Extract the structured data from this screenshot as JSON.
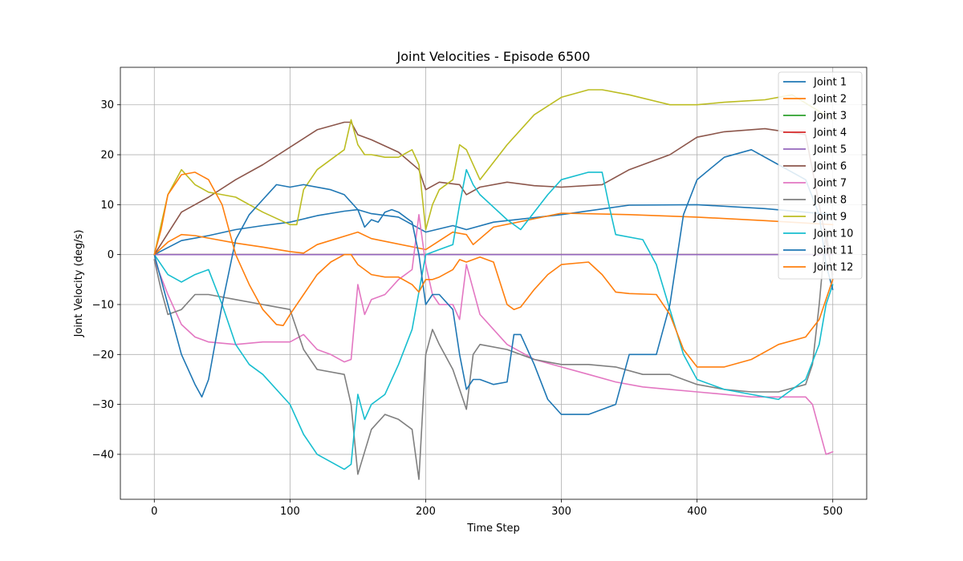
{
  "chart_data": {
    "type": "line",
    "title": "Joint Velocities - Episode 6500",
    "xlabel": "Time Step",
    "ylabel": "Joint Velocity (deg/s)",
    "xlim": [
      -25,
      525
    ],
    "ylim": [
      -49,
      37.5
    ],
    "xticks": [
      0,
      100,
      200,
      300,
      400,
      500
    ],
    "yticks": [
      -40,
      -30,
      -20,
      -10,
      0,
      10,
      20,
      30
    ],
    "grid": true,
    "legend_position": "top-right",
    "series": [
      {
        "name": "Joint 1",
        "color": "#1f77b4",
        "x": [
          0,
          20,
          40,
          60,
          80,
          100,
          120,
          140,
          150,
          160,
          180,
          200,
          220,
          230,
          250,
          300,
          350,
          400,
          450,
          500
        ],
        "y": [
          0,
          2.8,
          3.8,
          5,
          5.8,
          6.5,
          7.8,
          8.7,
          9,
          8.2,
          7.5,
          4.5,
          5.8,
          5,
          6.5,
          8,
          9.9,
          10,
          9.2,
          8
        ]
      },
      {
        "name": "Joint 2",
        "color": "#ff7f0e",
        "x": [
          0,
          10,
          20,
          30,
          40,
          60,
          80,
          100,
          110,
          120,
          150,
          160,
          200,
          220,
          230,
          235,
          250,
          300,
          350,
          400,
          450,
          500
        ],
        "y": [
          0,
          2.5,
          4,
          3.8,
          3.3,
          2.3,
          1.5,
          0.6,
          0.3,
          2,
          4.5,
          3.2,
          1,
          4.5,
          4,
          2,
          5.5,
          8.3,
          8,
          7.5,
          6.8,
          6
        ]
      },
      {
        "name": "Joint 3",
        "color": "#2ca02c",
        "x": [
          0,
          500
        ],
        "y": [
          0,
          0
        ]
      },
      {
        "name": "Joint 4",
        "color": "#d62728",
        "x": [
          0,
          500
        ],
        "y": [
          0,
          0
        ]
      },
      {
        "name": "Joint 5",
        "color": "#9467bd",
        "x": [
          0,
          500
        ],
        "y": [
          0,
          0
        ]
      },
      {
        "name": "Joint 6",
        "color": "#8c564b",
        "x": [
          0,
          20,
          40,
          60,
          80,
          100,
          120,
          140,
          145,
          150,
          160,
          180,
          195,
          200,
          210,
          225,
          230,
          240,
          260,
          280,
          300,
          330,
          350,
          380,
          400,
          420,
          450,
          480,
          500
        ],
        "y": [
          0,
          8.5,
          11.5,
          15,
          18,
          21.5,
          25,
          26.5,
          26.5,
          24,
          23,
          20.5,
          17,
          13,
          14.5,
          14,
          12,
          13.5,
          14.5,
          13.8,
          13.5,
          14,
          17,
          20,
          23.5,
          24.6,
          25.2,
          24,
          -4
        ]
      },
      {
        "name": "Joint 7",
        "color": "#e377c2",
        "x": [
          0,
          10,
          20,
          30,
          40,
          60,
          80,
          100,
          110,
          120,
          130,
          140,
          145,
          150,
          155,
          160,
          170,
          180,
          190,
          195,
          200,
          205,
          210,
          220,
          225,
          230,
          240,
          260,
          280,
          300,
          320,
          340,
          360,
          380,
          400,
          420,
          440,
          460,
          480,
          485,
          490,
          495,
          500
        ],
        "y": [
          -1,
          -8,
          -14,
          -16.5,
          -17.5,
          -18,
          -17.5,
          -17.5,
          -16,
          -19,
          -20,
          -21.5,
          -21,
          -6,
          -12,
          -9,
          -8,
          -5,
          -3,
          8,
          -2,
          -8,
          -10,
          -10,
          -13,
          -2,
          -12,
          -18,
          -21,
          -22.5,
          -24,
          -25.5,
          -26.5,
          -27,
          -27.5,
          -28,
          -28.5,
          -28.5,
          -28.5,
          -30,
          -35,
          -40,
          -39.5
        ]
      },
      {
        "name": "Joint 8",
        "color": "#7f7f7f",
        "x": [
          0,
          5,
          10,
          20,
          30,
          40,
          50,
          60,
          80,
          100,
          110,
          120,
          140,
          145,
          150,
          160,
          170,
          180,
          190,
          195,
          200,
          205,
          210,
          220,
          230,
          235,
          240,
          260,
          280,
          300,
          320,
          340,
          360,
          380,
          400,
          420,
          440,
          460,
          480,
          485,
          490,
          495,
          500
        ],
        "y": [
          -1,
          -7,
          -12,
          -11,
          -8,
          -8,
          -8.5,
          -9,
          -10,
          -11,
          -19,
          -23,
          -24,
          -30,
          -44,
          -35,
          -32,
          -33,
          -35,
          -45,
          -20,
          -15,
          -18,
          -23,
          -31,
          -20,
          -18,
          -19,
          -21,
          -22,
          -22,
          -22.5,
          -24,
          -24,
          -26,
          -27,
          -27.5,
          -27.5,
          -26,
          -22,
          -10,
          5,
          -5
        ]
      },
      {
        "name": "Joint 9",
        "color": "#bcbd22",
        "x": [
          0,
          10,
          20,
          30,
          40,
          50,
          60,
          80,
          100,
          105,
          110,
          120,
          140,
          145,
          150,
          155,
          160,
          170,
          180,
          190,
          195,
          200,
          205,
          210,
          220,
          225,
          230,
          240,
          260,
          280,
          300,
          320,
          330,
          350,
          380,
          400,
          420,
          450,
          470,
          500
        ],
        "y": [
          0,
          12,
          17,
          14,
          12.5,
          12,
          11.5,
          8.5,
          6,
          6,
          13,
          17,
          21,
          27,
          22,
          20,
          20,
          19.5,
          19.5,
          21,
          18,
          5,
          10,
          13,
          15,
          22,
          21,
          15,
          22,
          28,
          31.5,
          33,
          33,
          32,
          30,
          30,
          30.5,
          31,
          32,
          27
        ]
      },
      {
        "name": "Joint 10",
        "color": "#17becf",
        "x": [
          0,
          10,
          20,
          30,
          40,
          50,
          60,
          70,
          80,
          100,
          110,
          120,
          140,
          145,
          150,
          155,
          160,
          170,
          180,
          190,
          200,
          210,
          220,
          225,
          230,
          235,
          240,
          260,
          270,
          290,
          300,
          320,
          330,
          335,
          340,
          360,
          370,
          390,
          400,
          420,
          440,
          460,
          480,
          490,
          495,
          500
        ],
        "y": [
          0,
          -4,
          -5.5,
          -4,
          -3,
          -10,
          -18,
          -22,
          -24,
          -30,
          -36,
          -40,
          -43,
          -42,
          -28,
          -33,
          -30,
          -28,
          -22,
          -15,
          0,
          1,
          2,
          10,
          17,
          14,
          12,
          7,
          5,
          12,
          15,
          16.5,
          16.5,
          10,
          4,
          3,
          -2,
          -20,
          -25,
          -27,
          -28,
          -29,
          -25,
          -18,
          -10,
          -6
        ]
      },
      {
        "name": "Joint 11",
        "color": "#1f77b4",
        "x": [
          0,
          10,
          20,
          30,
          35,
          40,
          50,
          60,
          70,
          80,
          90,
          100,
          110,
          130,
          140,
          150,
          155,
          160,
          165,
          170,
          175,
          180,
          190,
          195,
          200,
          205,
          210,
          220,
          225,
          230,
          235,
          240,
          250,
          260,
          265,
          270,
          280,
          290,
          300,
          320,
          340,
          350,
          360,
          370,
          380,
          390,
          400,
          420,
          440,
          460,
          480,
          490,
          495,
          500
        ],
        "y": [
          0,
          -10,
          -20,
          -26,
          -28.5,
          -25,
          -10,
          3,
          8,
          11,
          14,
          13.5,
          14,
          13,
          12,
          9,
          5.5,
          7,
          6.5,
          8.5,
          9,
          8.5,
          6.5,
          0,
          -10,
          -8,
          -8,
          -11,
          -20,
          -27,
          -25,
          -25,
          -26,
          -25.5,
          -16,
          -16,
          -22,
          -29,
          -32,
          -32,
          -30,
          -20,
          -20,
          -20,
          -10,
          8,
          15,
          19.5,
          21,
          18,
          15,
          8,
          -2,
          -7
        ]
      },
      {
        "name": "Joint 12",
        "color": "#ff7f0e",
        "x": [
          0,
          5,
          10,
          20,
          30,
          40,
          50,
          60,
          70,
          80,
          90,
          95,
          100,
          110,
          120,
          130,
          140,
          145,
          150,
          160,
          170,
          180,
          190,
          195,
          200,
          205,
          210,
          220,
          225,
          230,
          235,
          240,
          250,
          260,
          265,
          270,
          280,
          290,
          300,
          320,
          330,
          340,
          350,
          370,
          380,
          390,
          400,
          420,
          440,
          460,
          480,
          490,
          500
        ],
        "y": [
          0,
          5,
          12,
          16,
          16.5,
          15,
          10,
          0,
          -6,
          -11,
          -14,
          -14.2,
          -12,
          -8,
          -4,
          -1.5,
          0,
          0,
          -2,
          -4,
          -4.5,
          -4.5,
          -6,
          -7.5,
          -5,
          -5,
          -4.5,
          -3,
          -1,
          -1.5,
          -1,
          -0.5,
          -1.5,
          -10,
          -11,
          -10.5,
          -7,
          -4,
          -2,
          -1.5,
          -4,
          -7.5,
          -7.8,
          -8,
          -12,
          -19,
          -22.5,
          -22.5,
          -21,
          -18,
          -16.5,
          -13,
          -5
        ]
      }
    ]
  }
}
